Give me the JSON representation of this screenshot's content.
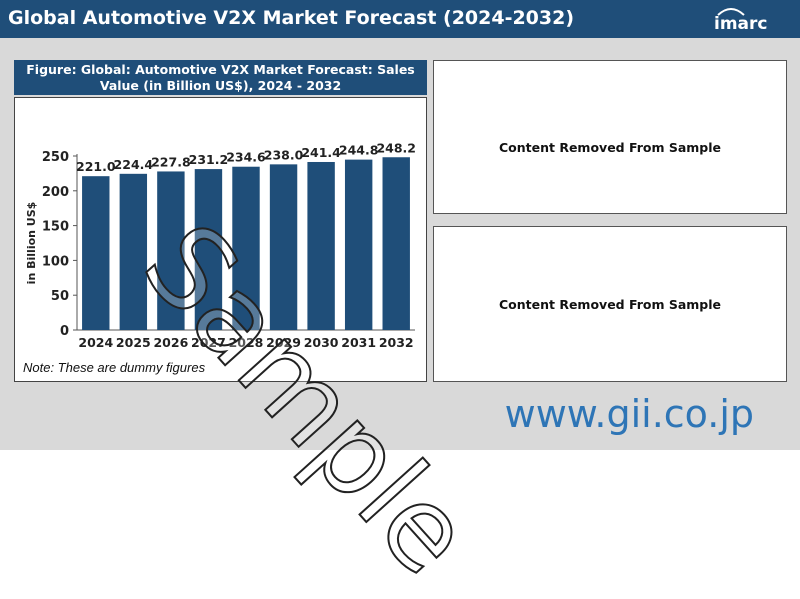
{
  "header": {
    "title": "Global Automotive V2X Market Forecast (2024-2032)",
    "logo_text": "imarc",
    "bg_color": "#1f4e79"
  },
  "figure": {
    "title": "Figure: Global: Automotive V2X Market Forecast: Sales Value (in Billion US$), 2024 - 2032",
    "note": "Note: These are dummy figures"
  },
  "panels": [
    {
      "text": "Content Removed From Sample"
    },
    {
      "text": "Content Removed From Sample"
    }
  ],
  "footer": {
    "url": "www.gii.co.jp",
    "color": "#2e75b6"
  },
  "watermark": "Sample",
  "chart_data": {
    "type": "bar",
    "categories": [
      "2024",
      "2025",
      "2026",
      "2027",
      "2028",
      "2029",
      "2030",
      "2031",
      "2032"
    ],
    "values": [
      221.0,
      224.4,
      227.8,
      231.2,
      234.6,
      238.0,
      241.4,
      244.8,
      248.2
    ],
    "value_labels": [
      "221.0",
      "224.4",
      "227.8",
      "231.2",
      "234.6",
      "238.0",
      "241.4",
      "244.8",
      "248.2"
    ],
    "title": "Figure: Global: Automotive V2X Market Forecast: Sales Value (in Billion US$), 2024 - 2032",
    "xlabel": "",
    "ylabel": "in Billion US$",
    "ylim": [
      0,
      250
    ],
    "yticks": [
      0,
      50,
      100,
      150,
      200,
      250
    ],
    "bar_color": "#1f4e79",
    "grid": false,
    "legend": false
  }
}
